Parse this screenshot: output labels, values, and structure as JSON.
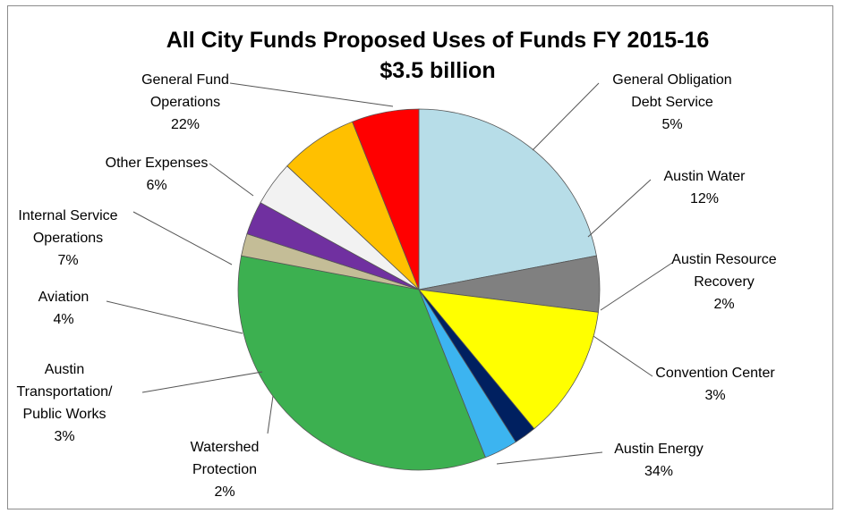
{
  "chart_data": {
    "type": "pie",
    "title": "All City Funds Proposed Uses of Funds FY 2015-16",
    "subtitle": "$3.5 billion",
    "slices": [
      {
        "label": [
          "General Fund",
          "Operations"
        ],
        "value": 22,
        "pct_label": "22%",
        "color": "#b7dde8"
      },
      {
        "label": [
          "General Obligation",
          "Debt Service"
        ],
        "value": 5,
        "pct_label": "5%",
        "color": "#808080"
      },
      {
        "label": [
          "Austin Water"
        ],
        "value": 12,
        "pct_label": "12%",
        "color": "#ffff00"
      },
      {
        "label": [
          "Austin Resource",
          "Recovery"
        ],
        "value": 2,
        "pct_label": "2%",
        "color": "#002060"
      },
      {
        "label": [
          "Convention Center"
        ],
        "value": 3,
        "pct_label": "3%",
        "color": "#3cb4f0"
      },
      {
        "label": [
          "Austin Energy"
        ],
        "value": 34,
        "pct_label": "34%",
        "color": "#3cb050"
      },
      {
        "label": [
          "Watershed",
          "Protection"
        ],
        "value": 2,
        "pct_label": "2%",
        "color": "#c4bd97"
      },
      {
        "label": [
          "Austin",
          "Transportation/",
          "Public Works"
        ],
        "value": 3,
        "pct_label": "3%",
        "color": "#7030a0"
      },
      {
        "label": [
          "Aviation"
        ],
        "value": 4,
        "pct_label": "4%",
        "color": "#f2f2f2"
      },
      {
        "label": [
          "Internal Service",
          "Operations"
        ],
        "value": 7,
        "pct_label": "7%",
        "color": "#ffc000"
      },
      {
        "label": [
          "Other Expenses"
        ],
        "value": 6,
        "pct_label": "6%",
        "color": "#ff0000"
      }
    ]
  }
}
